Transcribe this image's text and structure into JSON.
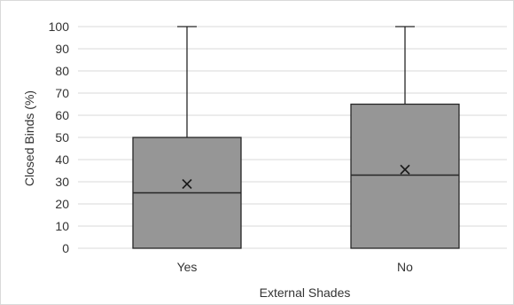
{
  "chart_data": {
    "type": "box",
    "title": "",
    "xlabel": "External Shades",
    "ylabel": "Closed Binds (%)",
    "ylim": [
      0,
      100
    ],
    "yticks": [
      0,
      10,
      20,
      30,
      40,
      50,
      60,
      70,
      80,
      90,
      100
    ],
    "gridlines": true,
    "categories": [
      "Yes",
      "No"
    ],
    "boxes": [
      {
        "category": "Yes",
        "min": 0,
        "q1": 0,
        "median": 25,
        "q3": 50,
        "max": 100,
        "mean": 29
      },
      {
        "category": "No",
        "min": 0,
        "q1": 0,
        "median": 33,
        "q3": 65,
        "max": 100,
        "mean": 35.5
      }
    ],
    "colors": {
      "box_fill": "#969696",
      "box_stroke": "#262626",
      "grid": "#d9d9d9"
    }
  }
}
